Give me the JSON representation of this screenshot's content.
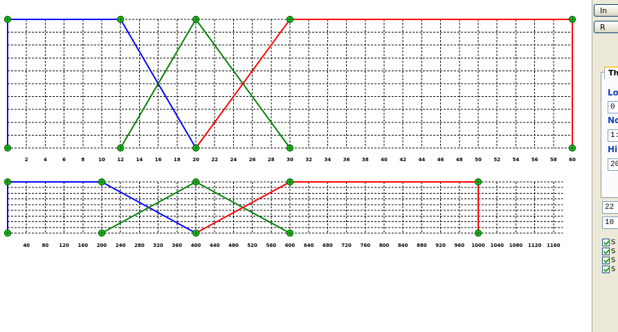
{
  "colors": {
    "low": "#0000ff",
    "normal": "#008000",
    "high": "#ff0000",
    "node_fill": "#22cc22",
    "node_stroke": "#005500",
    "grid": "#000000"
  },
  "chart_data": [
    {
      "type": "line",
      "title": "",
      "xlim": [
        0,
        60
      ],
      "x_ticks": [
        "2",
        "4",
        "6",
        "8",
        "10",
        "12",
        "14",
        "16",
        "18",
        "20",
        "22",
        "24",
        "26",
        "28",
        "30",
        "32",
        "34",
        "36",
        "38",
        "40",
        "42",
        "44",
        "46",
        "48",
        "50",
        "52",
        "54",
        "56",
        "58",
        "60"
      ],
      "series": [
        {
          "color_key": "low",
          "x": [
            0,
            0,
            12,
            20
          ],
          "y": [
            0,
            1,
            1,
            0
          ]
        },
        {
          "color_key": "normal",
          "x": [
            12,
            20,
            30
          ],
          "y": [
            0,
            1,
            0
          ]
        },
        {
          "color_key": "high",
          "x": [
            20,
            30,
            60,
            60
          ],
          "y": [
            0,
            1,
            1,
            0
          ]
        }
      ]
    },
    {
      "type": "line",
      "title": "",
      "xlim": [
        0,
        1200
      ],
      "x_ticks": [
        "40",
        "80",
        "120",
        "160",
        "200",
        "240",
        "280",
        "320",
        "360",
        "400",
        "440",
        "480",
        "520",
        "560",
        "600",
        "640",
        "680",
        "720",
        "760",
        "800",
        "840",
        "880",
        "920",
        "960",
        "1000",
        "1040",
        "1080",
        "1120",
        "1160"
      ],
      "series": [
        {
          "color_key": "low",
          "x": [
            0,
            0,
            200,
            400
          ],
          "y": [
            0,
            1,
            1,
            0
          ]
        },
        {
          "color_key": "normal",
          "x": [
            200,
            400,
            600
          ],
          "y": [
            0,
            1,
            0
          ]
        },
        {
          "color_key": "high",
          "x": [
            400,
            600,
            1000,
            1000
          ],
          "y": [
            0,
            1,
            1,
            0
          ]
        }
      ]
    }
  ],
  "panel": {
    "btn1": "In",
    "btn2": "R",
    "tab_label": "Th",
    "low_label": "Lo",
    "low_value": "0",
    "normal_label": "No",
    "normal_value": "1:",
    "high_label": "Hi",
    "high_value": "20",
    "field1": "22",
    "field2": "10",
    "checks": [
      "S",
      "S",
      "S",
      "S"
    ]
  }
}
